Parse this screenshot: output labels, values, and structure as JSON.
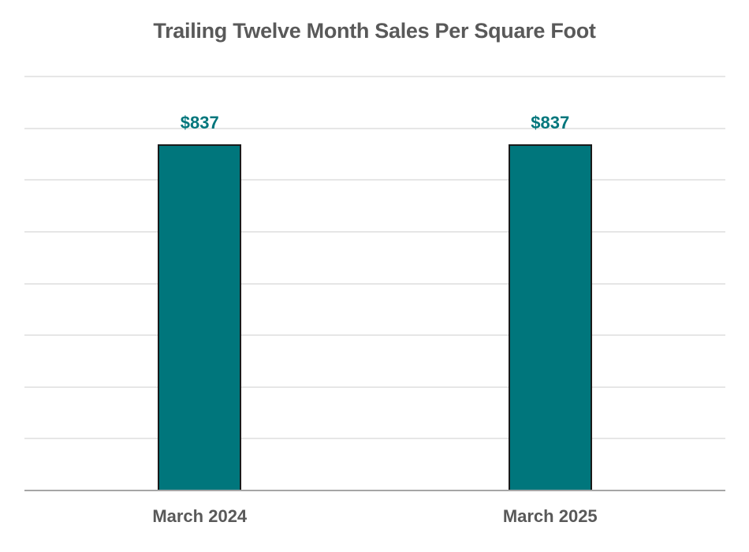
{
  "chart_data": {
    "type": "bar",
    "title": "Trailing Twelve Month Sales Per Square Foot",
    "categories": [
      "March 2024",
      "March 2025"
    ],
    "values": [
      837,
      837
    ],
    "data_labels": [
      "$837",
      "$837"
    ],
    "xlabel": "",
    "ylabel": "",
    "ylim": [
      0,
      1000
    ],
    "y_gridline_step": 125,
    "y_tick_labels_visible": false,
    "grid": true,
    "legend": null,
    "colors": {
      "bar": "#00767c",
      "bar_border": "#1a1a1a",
      "data_label": "#00767c",
      "title": "#595959",
      "axis_label": "#595959",
      "gridline": "#e6e6e6",
      "axis": "#a6a6a6"
    }
  }
}
